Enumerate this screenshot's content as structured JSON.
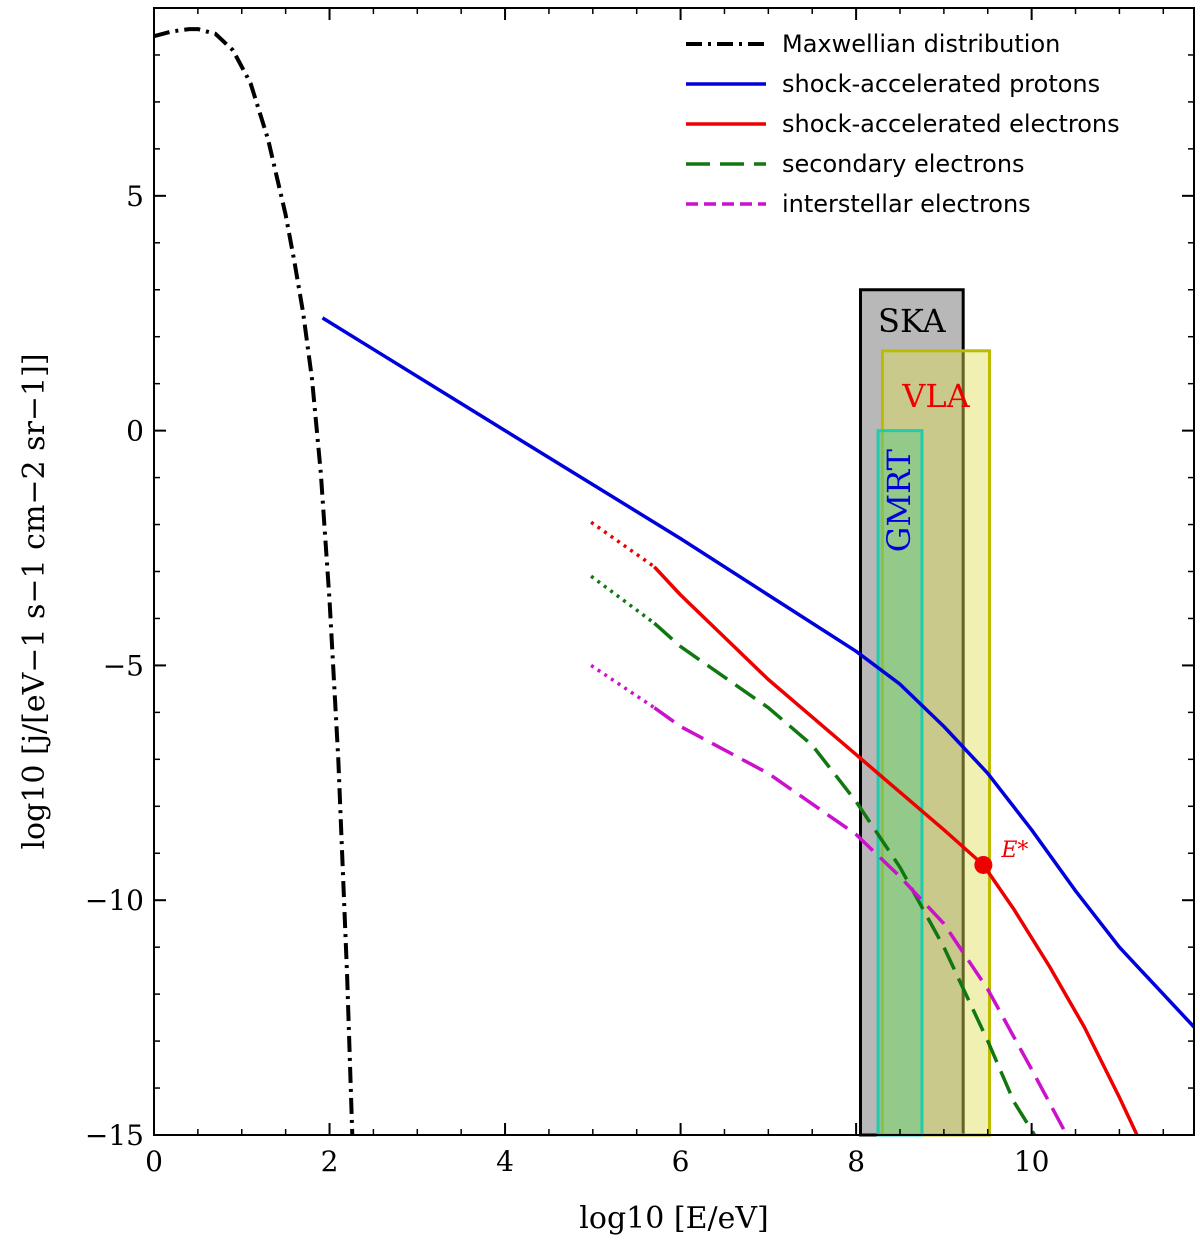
{
  "chart_data": {
    "type": "line",
    "xlabel": "log10 [E/eV]",
    "ylabel": "log10 [j/[eV−1 s−1 cm−2 sr−1]]",
    "xlim": [
      0,
      11.85
    ],
    "ylim": [
      -15,
      9
    ],
    "xticks": [
      0,
      2,
      4,
      6,
      8,
      10
    ],
    "xtick_labels": [
      "0",
      "2",
      "4",
      "6",
      "8",
      "10"
    ],
    "yticks": [
      -15,
      -10,
      -5,
      0,
      5
    ],
    "ytick_labels": [
      "−15",
      "−10",
      "−5",
      "0",
      "5"
    ],
    "legend_position": "top-right",
    "series": [
      {
        "name": "Maxwellian distribution",
        "color": "#000000",
        "style": "dashdot",
        "x": [
          0,
          0.2,
          0.4,
          0.5,
          0.7,
          0.9,
          1.1,
          1.3,
          1.5,
          1.6,
          1.7,
          1.8,
          1.9,
          2.0,
          2.1,
          2.2,
          2.26
        ],
        "y": [
          8.4,
          8.5,
          8.55,
          8.55,
          8.45,
          8.1,
          7.4,
          6.2,
          4.6,
          3.6,
          2.5,
          1.1,
          -0.9,
          -3.6,
          -7.0,
          -11.6,
          -15
        ]
      },
      {
        "name": "shock-accelerated protons",
        "color": "#0000dd",
        "style": "solid",
        "x": [
          1.92,
          4.0,
          6.0,
          7.0,
          8.0,
          8.5,
          9.0,
          9.5,
          10.0,
          10.5,
          11.0,
          11.85
        ],
        "y": [
          2.4,
          0.0,
          -2.3,
          -3.5,
          -4.7,
          -5.4,
          -6.3,
          -7.3,
          -8.5,
          -9.8,
          -11.0,
          -12.7
        ]
      },
      {
        "name": "shock-accelerated electrons",
        "color": "#ee0000",
        "style": "solid",
        "x": [
          5.7,
          6.0,
          7.0,
          8.0,
          8.5,
          9.0,
          9.45,
          9.8,
          10.2,
          10.6,
          11.0,
          11.2
        ],
        "y": [
          -2.9,
          -3.5,
          -5.3,
          -6.9,
          -7.7,
          -8.5,
          -9.25,
          -10.2,
          -11.4,
          -12.7,
          -14.2,
          -15
        ]
      },
      {
        "name": "secondary electrons",
        "color": "#117711",
        "style": "dashed",
        "x": [
          5.7,
          6.0,
          7.0,
          7.5,
          8.0,
          8.5,
          9.0,
          9.5,
          9.8,
          10.1
        ],
        "y": [
          -4.1,
          -4.6,
          -5.9,
          -6.7,
          -7.9,
          -9.3,
          -11.0,
          -13.0,
          -14.3,
          -15.2
        ]
      },
      {
        "name": "interstellar electrons",
        "color": "#cc11cc",
        "style": "dashed",
        "x": [
          5.7,
          6.0,
          7.0,
          8.0,
          8.5,
          9.0,
          9.5,
          10.0,
          10.4
        ],
        "y": [
          -5.9,
          -6.3,
          -7.3,
          -8.6,
          -9.5,
          -10.5,
          -11.9,
          -13.6,
          -15
        ]
      }
    ],
    "dotted_extensions": [
      {
        "color": "#ee0000",
        "x": [
          4.98,
          5.7
        ],
        "y": [
          -1.95,
          -2.9
        ]
      },
      {
        "color": "#117711",
        "x": [
          4.98,
          5.7
        ],
        "y": [
          -3.1,
          -4.1
        ]
      },
      {
        "color": "#cc11cc",
        "x": [
          4.98,
          5.7
        ],
        "y": [
          -5.0,
          -5.9
        ]
      }
    ],
    "bands": [
      {
        "label": "SKA",
        "label_color": "#000000",
        "x_start": 8.05,
        "x_end": 9.22,
        "y_top": 3.0,
        "fill": "#888888",
        "fill_opacity": 0.6,
        "stroke": "#000000"
      },
      {
        "label": "VLA",
        "label_color": "#ee0000",
        "x_start": 8.3,
        "x_end": 9.52,
        "y_top": 1.7,
        "fill": "#dddd55",
        "fill_opacity": 0.45,
        "stroke": "#bbbb00"
      },
      {
        "label": "GMRT",
        "label_color": "#0000dd",
        "x_start": 8.25,
        "x_end": 8.75,
        "y_top": 0.0,
        "fill": "#55cc88",
        "fill_opacity": 0.45,
        "stroke": "#22ccaa"
      }
    ],
    "annotations": [
      {
        "label": "E*",
        "x": 9.45,
        "y": -9.25,
        "color": "#ee0000"
      }
    ]
  }
}
